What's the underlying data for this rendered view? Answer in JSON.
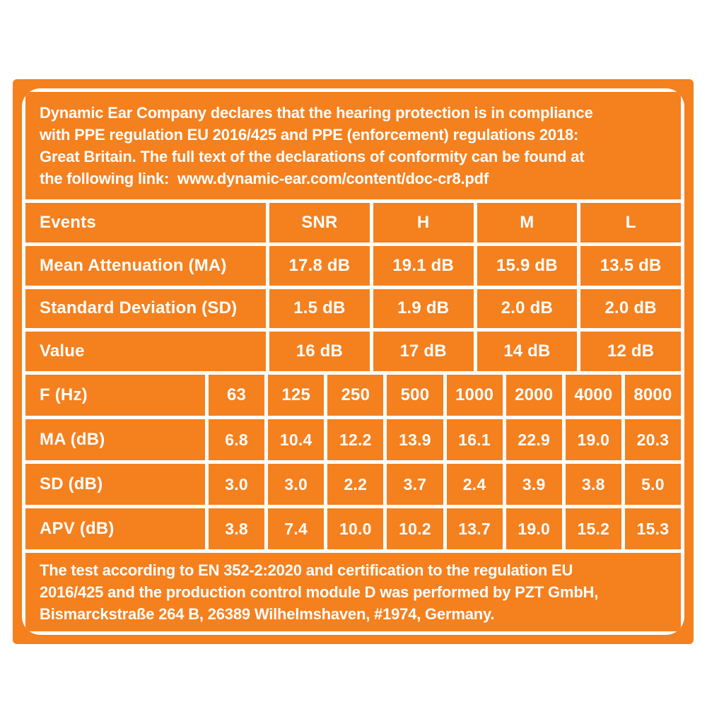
{
  "colors": {
    "orange": "#F5801E",
    "text": "#FFFFFF",
    "page_background": "#FFFFFF"
  },
  "intro": {
    "lines": [
      "Dynamic Ear Company declares that the hearing protection is in compliance",
      "with PPE regulation EU 2016/425 and PPE (enforcement) regulations 2018:",
      "Great Britain. The full text of the declarations of conformity can be found at",
      "the following link:  www.dynamic-ear.com/content/doc-cr8.pdf"
    ],
    "link_url": "www.dynamic-ear.com/content/doc-cr8.pdf"
  },
  "summary_table": {
    "rows": [
      [
        "Events",
        "SNR",
        "H",
        "M",
        "L"
      ],
      [
        "Mean Attenuation (MA)",
        "17.8 dB",
        "19.1 dB",
        "15.9 dB",
        "13.5 dB"
      ],
      [
        "Standard Deviation (SD)",
        "1.5 dB",
        "1.9 dB",
        "2.0 dB",
        "2.0 dB"
      ],
      [
        "Value",
        "16 dB",
        "17 dB",
        "14 dB",
        "12 dB"
      ]
    ]
  },
  "frequency_table": {
    "rows": [
      [
        "F (Hz)",
        "63",
        "125",
        "250",
        "500",
        "1000",
        "2000",
        "4000",
        "8000"
      ],
      [
        "MA (dB)",
        "6.8",
        "10.4",
        "12.2",
        "13.9",
        "16.1",
        "22.9",
        "19.0",
        "20.3"
      ],
      [
        "SD (dB)",
        "3.0",
        "3.0",
        "2.2",
        "3.7",
        "2.4",
        "3.9",
        "3.8",
        "5.0"
      ],
      [
        "APV (dB)",
        "3.8",
        "7.4",
        "10.0",
        "10.2",
        "13.7",
        "19.0",
        "15.2",
        "15.3"
      ]
    ]
  },
  "footer": {
    "lines": [
      "The test according to EN 352-2:2020 and certification to the regulation EU",
      "2016/425 and the production control module D was performed by PZT GmbH,",
      "Bismarckstraße 264 B, 26389 Wilhelmshaven, #1974, Germany."
    ]
  }
}
